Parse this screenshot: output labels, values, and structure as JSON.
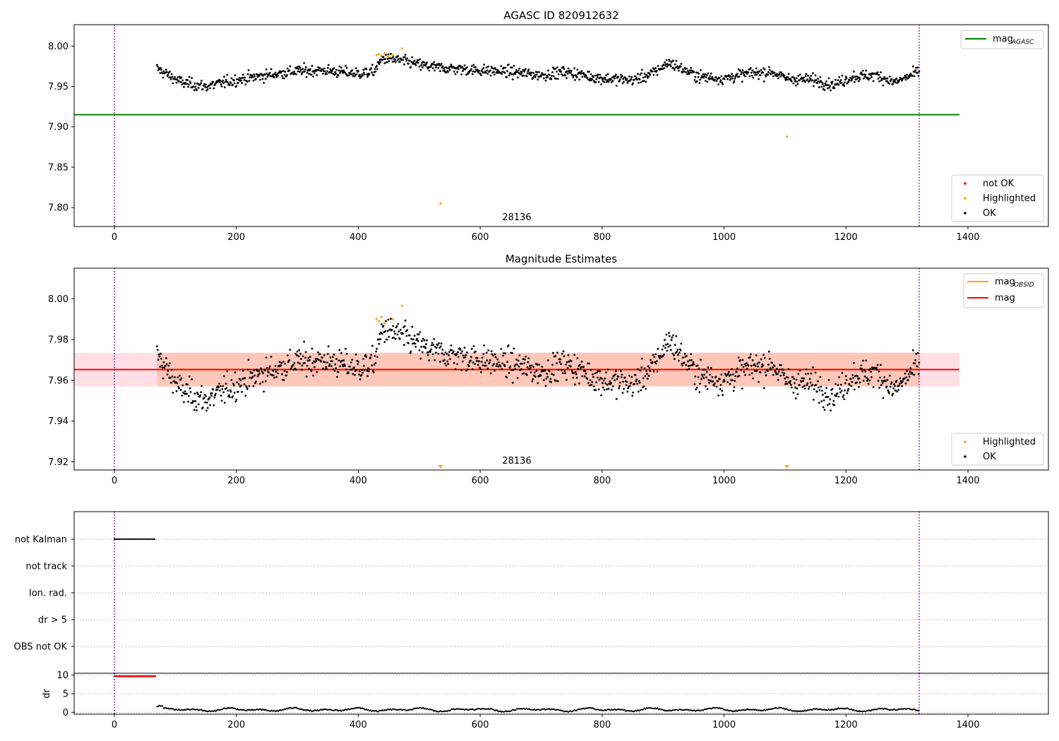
{
  "chart_data": [
    {
      "type": "scatter",
      "title": "AGASC ID 820912632",
      "xlim": [
        -66,
        1532
      ],
      "ylim": [
        7.7765,
        8.0265
      ],
      "xticks": [
        0,
        200,
        400,
        600,
        800,
        1000,
        1200,
        1400
      ],
      "yticks": [
        7.8,
        7.85,
        7.9,
        7.95,
        8.0
      ],
      "ytick_labels": [
        "7.80",
        "7.85",
        "7.90",
        "7.95",
        "8.00"
      ],
      "vlines": [
        0,
        1320
      ],
      "annotation": {
        "text": "28136",
        "x": 660,
        "y": 7.788
      },
      "mag_agasc": {
        "name": "mag_AGASC",
        "value": 7.915,
        "x_range": [
          -66,
          1386
        ],
        "color": "#008000"
      },
      "ok_points": {
        "x_range": [
          70,
          1320
        ],
        "count": 1250,
        "color": "#000000"
      },
      "highlighted_points": [
        {
          "x": 430,
          "y": 7.989
        },
        {
          "x": 434,
          "y": 7.99
        },
        {
          "x": 438,
          "y": 7.988
        },
        {
          "x": 443,
          "y": 7.991
        },
        {
          "x": 449,
          "y": 7.987
        },
        {
          "x": 457,
          "y": 7.989
        },
        {
          "x": 472,
          "y": 7.997
        },
        {
          "x": 535,
          "y": 7.805
        },
        {
          "x": 1103,
          "y": 7.888
        }
      ],
      "legend_top": {
        "location": "upper-right",
        "entries": [
          "mag",
          "AGASC"
        ]
      },
      "legend_bottom": {
        "location": "lower-right",
        "entries": [
          "not OK",
          "Highlighted",
          "OK"
        ]
      },
      "colors": {
        "not_ok": "#ff0000",
        "highlighted": "#ffa500",
        "ok": "#000000"
      }
    },
    {
      "type": "scatter",
      "title": "Magnitude Estimates",
      "xlim": [
        -66,
        1532
      ],
      "ylim": [
        7.916,
        8.015
      ],
      "xticks": [
        0,
        200,
        400,
        600,
        800,
        1000,
        1200,
        1400
      ],
      "yticks": [
        7.92,
        7.94,
        7.96,
        7.98,
        8.0
      ],
      "ytick_labels": [
        "7.92",
        "7.94",
        "7.96",
        "7.98",
        "8.00"
      ],
      "vlines": [
        0,
        1320
      ],
      "annotation": {
        "text": "28136",
        "x": 660,
        "y": 7.9185
      },
      "mag": {
        "value": 7.9653,
        "band": [
          7.957,
          7.9735
        ],
        "x_range": [
          -66,
          1386
        ],
        "color": "#ff0000",
        "band_color": "#ffc0cb"
      },
      "mag_obsid": {
        "value": 7.9653,
        "band": [
          7.957,
          7.9735
        ],
        "x_range": [
          70,
          1320
        ],
        "color": "#ffa500",
        "band_color": "#ffa07a"
      },
      "ok_points": {
        "x_range": [
          70,
          1320
        ],
        "count": 1250,
        "color": "#000000"
      },
      "highlighted_points": [
        {
          "x": 430,
          "y": 7.99
        },
        {
          "x": 434,
          "y": 7.989
        },
        {
          "x": 438,
          "y": 7.991
        },
        {
          "x": 443,
          "y": 7.988
        },
        {
          "x": 457,
          "y": 7.99
        },
        {
          "x": 472,
          "y": 7.9965
        }
      ],
      "offscale_markers": [
        535,
        1103
      ],
      "legend_top": {
        "location": "upper-right",
        "entries": [
          "mag",
          "OBSID",
          "mag"
        ]
      },
      "legend_bottom": {
        "location": "lower-right",
        "entries": [
          "Highlighted",
          "OK"
        ]
      },
      "colors": {
        "highlighted": "#ffa500",
        "ok": "#000000"
      }
    },
    {
      "type": "scatter",
      "xlim": [
        -66,
        1532
      ],
      "flags": [
        "not Kalman",
        "not track",
        "Ion. rad.",
        "dr > 5",
        "OBS not OK"
      ],
      "flag_points": {
        "flag": "not Kalman",
        "x_range": [
          0,
          68
        ],
        "color": "#000000"
      },
      "vlines": [
        0,
        1320
      ]
    },
    {
      "type": "scatter",
      "xlim": [
        -66,
        1532
      ],
      "ylim": [
        -0.5,
        10.5
      ],
      "ylabel": "dr",
      "yticks": [
        0,
        5,
        10
      ],
      "ytick_labels": [
        "0",
        "5",
        "10"
      ],
      "xticks": [
        0,
        200,
        400,
        600,
        800,
        1000,
        1200,
        1400
      ],
      "vlines": [
        0,
        1320
      ],
      "red_points": {
        "x_range": [
          0,
          68
        ],
        "y": 9.7,
        "color": "#ff0000"
      },
      "ok_points": {
        "x_range": [
          70,
          1320
        ],
        "color": "#000000"
      }
    }
  ]
}
